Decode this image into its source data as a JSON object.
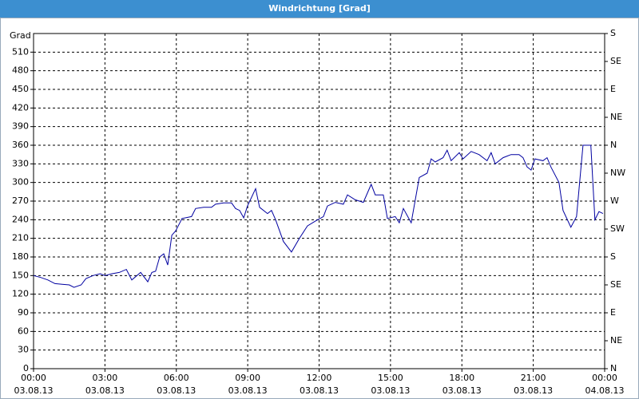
{
  "chart_data": {
    "type": "line",
    "title": "Windrichtung [Grad]",
    "y_label": "Grad",
    "x": [
      0,
      0.3,
      0.6,
      0.9,
      1.2,
      1.5,
      1.7,
      2.0,
      2.2,
      2.5,
      2.8,
      3.0,
      3.3,
      3.6,
      3.9,
      4.13,
      4.5,
      4.8,
      4.97,
      5.13,
      5.3,
      5.47,
      5.64,
      5.81,
      5.97,
      6.24,
      6.64,
      6.81,
      7.15,
      7.48,
      7.65,
      7.99,
      8.32,
      8.49,
      8.66,
      8.83,
      8.99,
      9.33,
      9.5,
      9.83,
      10.0,
      10.17,
      10.5,
      10.84,
      11.17,
      11.51,
      11.85,
      12.18,
      12.35,
      12.68,
      13.02,
      13.19,
      13.52,
      13.86,
      14.19,
      14.36,
      14.7,
      14.87,
      15.2,
      15.37,
      15.54,
      15.87,
      16.21,
      16.54,
      16.71,
      16.88,
      17.21,
      17.38,
      17.55,
      17.89,
      18.05,
      18.39,
      18.72,
      19.06,
      19.23,
      19.4,
      19.73,
      20.07,
      20.4,
      20.57,
      20.74,
      20.91,
      21.07,
      21.41,
      21.58,
      21.74,
      22.08,
      22.25,
      22.58,
      22.82,
      23.09,
      23.42,
      23.59,
      23.76,
      23.93
    ],
    "series": [
      {
        "name": "Windrichtung",
        "color": "#0000a0",
        "values": [
          150,
          147,
          143,
          137,
          136,
          135,
          131,
          135,
          145,
          150,
          153,
          150,
          153,
          155,
          160,
          143,
          155,
          140,
          155,
          157,
          180,
          185,
          167,
          215,
          222,
          242,
          245,
          258,
          260,
          260,
          265,
          267,
          267,
          258,
          255,
          243,
          262,
          290,
          260,
          250,
          255,
          240,
          205,
          188,
          210,
          230,
          238,
          245,
          262,
          268,
          265,
          280,
          272,
          268,
          297,
          280,
          280,
          242,
          245,
          235,
          258,
          235,
          308,
          315,
          338,
          333,
          340,
          352,
          335,
          348,
          338,
          350,
          345,
          335,
          348,
          330,
          340,
          345,
          345,
          340,
          325,
          320,
          338,
          335,
          340,
          325,
          300,
          255,
          228,
          245,
          360,
          360,
          240,
          253,
          250
        ]
      }
    ],
    "xlim": [
      0,
      24
    ],
    "xticks": [
      {
        "value": 0,
        "label": [
          "00:00",
          "03.08.13"
        ]
      },
      {
        "value": 3,
        "label": [
          "03:00",
          "03.08.13"
        ]
      },
      {
        "value": 6,
        "label": [
          "06:00",
          "03.08.13"
        ]
      },
      {
        "value": 9,
        "label": [
          "09:00",
          "03.08.13"
        ]
      },
      {
        "value": 12,
        "label": [
          "12:00",
          "03.08.13"
        ]
      },
      {
        "value": 15,
        "label": [
          "15:00",
          "03.08.13"
        ]
      },
      {
        "value": 18,
        "label": [
          "18:00",
          "03.08.13"
        ]
      },
      {
        "value": 21,
        "label": [
          "21:00",
          "03.08.13"
        ]
      },
      {
        "value": 24,
        "label": [
          "00:00",
          "04.08.13"
        ]
      }
    ],
    "ylim": [
      0,
      540
    ],
    "yticks": [
      0,
      30,
      60,
      90,
      120,
      150,
      180,
      210,
      240,
      270,
      300,
      330,
      360,
      390,
      420,
      450,
      480,
      510
    ],
    "y2lim": [
      0,
      540
    ],
    "y2ticks": [
      {
        "value": 0,
        "label": "N"
      },
      {
        "value": 45,
        "label": "NE"
      },
      {
        "value": 90,
        "label": "E"
      },
      {
        "value": 135,
        "label": "SE"
      },
      {
        "value": 180,
        "label": "S"
      },
      {
        "value": 225,
        "label": "SW"
      },
      {
        "value": 270,
        "label": "W"
      },
      {
        "value": 315,
        "label": "NW"
      },
      {
        "value": 360,
        "label": "N"
      },
      {
        "value": 405,
        "label": "NE"
      },
      {
        "value": 450,
        "label": "E"
      },
      {
        "value": 495,
        "label": "SE"
      },
      {
        "value": 540,
        "label": "S"
      }
    ],
    "grid": true
  }
}
